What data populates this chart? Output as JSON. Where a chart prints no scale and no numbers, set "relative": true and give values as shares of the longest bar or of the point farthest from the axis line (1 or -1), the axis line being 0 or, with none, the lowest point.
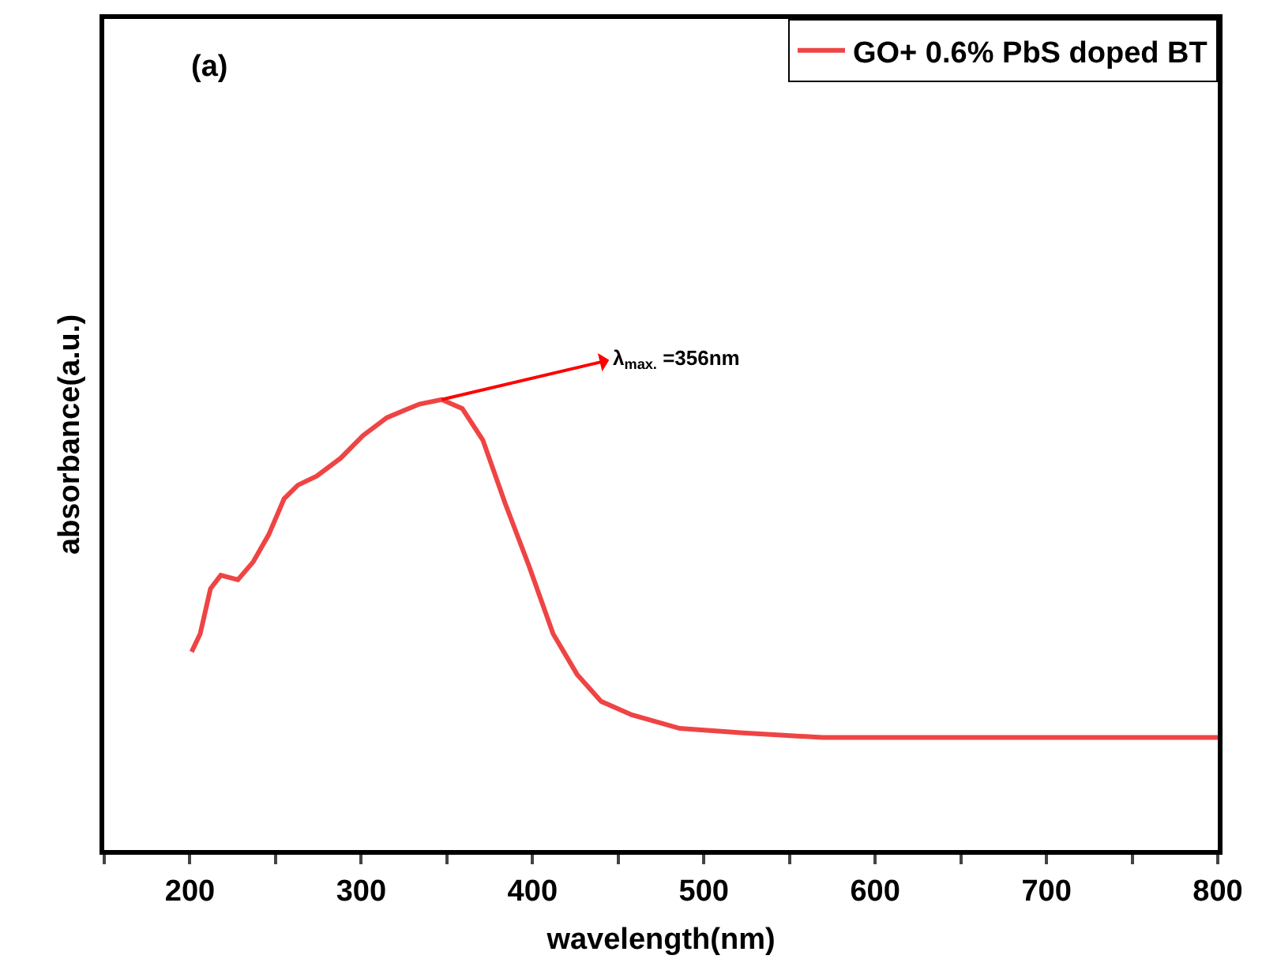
{
  "chart_data": {
    "type": "line",
    "xlabel": "wavelength(nm)",
    "ylabel": "absorbance(a.u.)",
    "relative": true,
    "legend": "top right",
    "grid": false,
    "marker": "none",
    "line_style": "solid",
    "xlim": [
      150,
      800
    ],
    "xticks": [
      {
        "value": 150,
        "label": null
      },
      200,
      {
        "value": 250,
        "label": null
      },
      300,
      {
        "value": 350,
        "label": null
      },
      400,
      {
        "value": 450,
        "label": null
      },
      500,
      {
        "value": 550,
        "label": null
      },
      600,
      {
        "value": 650,
        "label": null
      },
      700,
      {
        "value": 750,
        "label": null
      },
      800
    ],
    "x": [
      201,
      206,
      212,
      218,
      228,
      237,
      246,
      255,
      263,
      274,
      288,
      301,
      315,
      334,
      347,
      359,
      371,
      384,
      398,
      412,
      426,
      440,
      458,
      486,
      523,
      569,
      642,
      735,
      800
    ],
    "series": [
      {
        "name": "GO+ 0.6% PbS doped BT",
        "color": "#ef4444",
        "values": [
          0.44,
          0.48,
          0.58,
          0.61,
          0.6,
          0.64,
          0.7,
          0.78,
          0.81,
          0.83,
          0.87,
          0.92,
          0.96,
          0.99,
          1,
          0.98,
          0.91,
          0.77,
          0.63,
          0.48,
          0.39,
          0.33,
          0.3,
          0.27,
          0.26,
          0.25,
          0.25,
          0.25,
          0.25
        ]
      }
    ],
    "annotations": [
      "(a)",
      {
        "text": "λ$_{max.}$ =356nm",
        "x": 347,
        "y": 1
      }
    ]
  }
}
